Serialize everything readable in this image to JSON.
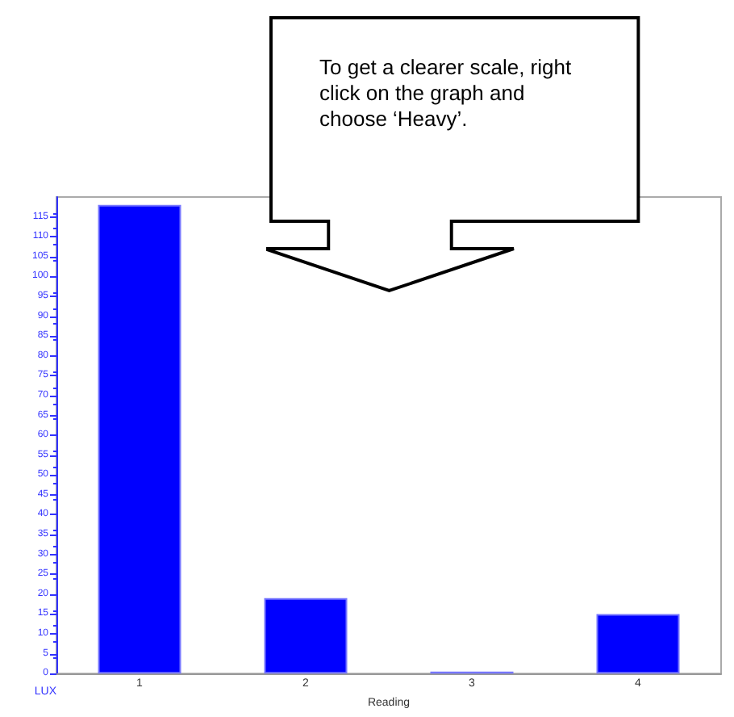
{
  "chart_data": {
    "type": "bar",
    "xlabel": "Reading",
    "ylabel": "LUX",
    "categories": [
      "1",
      "2",
      "3",
      "4"
    ],
    "values": [
      118,
      19,
      0.5,
      15
    ],
    "color": "#0000ff",
    "ylim": [
      0,
      120
    ],
    "yticks": [
      0,
      5,
      10,
      15,
      20,
      25,
      30,
      35,
      40,
      45,
      50,
      55,
      60,
      65,
      70,
      75,
      80,
      85,
      90,
      95,
      100,
      105,
      110,
      115
    ],
    "grid": false,
    "annotations": [
      "To get a clearer scale, right click on the graph and choose ‘Heavy’."
    ]
  }
}
